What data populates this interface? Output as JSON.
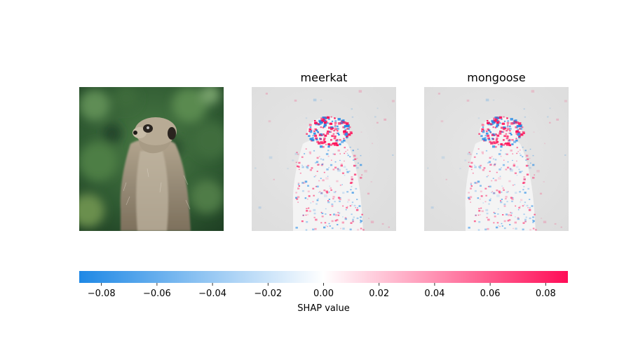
{
  "chart_data": {
    "type": "heatmap",
    "panels": [
      {
        "title": "",
        "kind": "image",
        "subject": "meerkat photo"
      },
      {
        "title": "meerkat",
        "kind": "shap-overlay"
      },
      {
        "title": "mongoose",
        "kind": "shap-overlay"
      }
    ],
    "colorbar": {
      "label": "SHAP value",
      "range": [
        -0.088,
        0.088
      ],
      "ticks": [
        -0.08,
        -0.06,
        -0.04,
        -0.02,
        0.0,
        0.02,
        0.04,
        0.06,
        0.08
      ],
      "tick_labels": [
        "−0.08",
        "−0.06",
        "−0.04",
        "−0.02",
        "0.00",
        "0.02",
        "0.04",
        "0.06",
        "0.08"
      ],
      "colors": {
        "negative": "#1e88e5",
        "zero": "#ffffff",
        "positive": "#ff0d57"
      }
    }
  }
}
